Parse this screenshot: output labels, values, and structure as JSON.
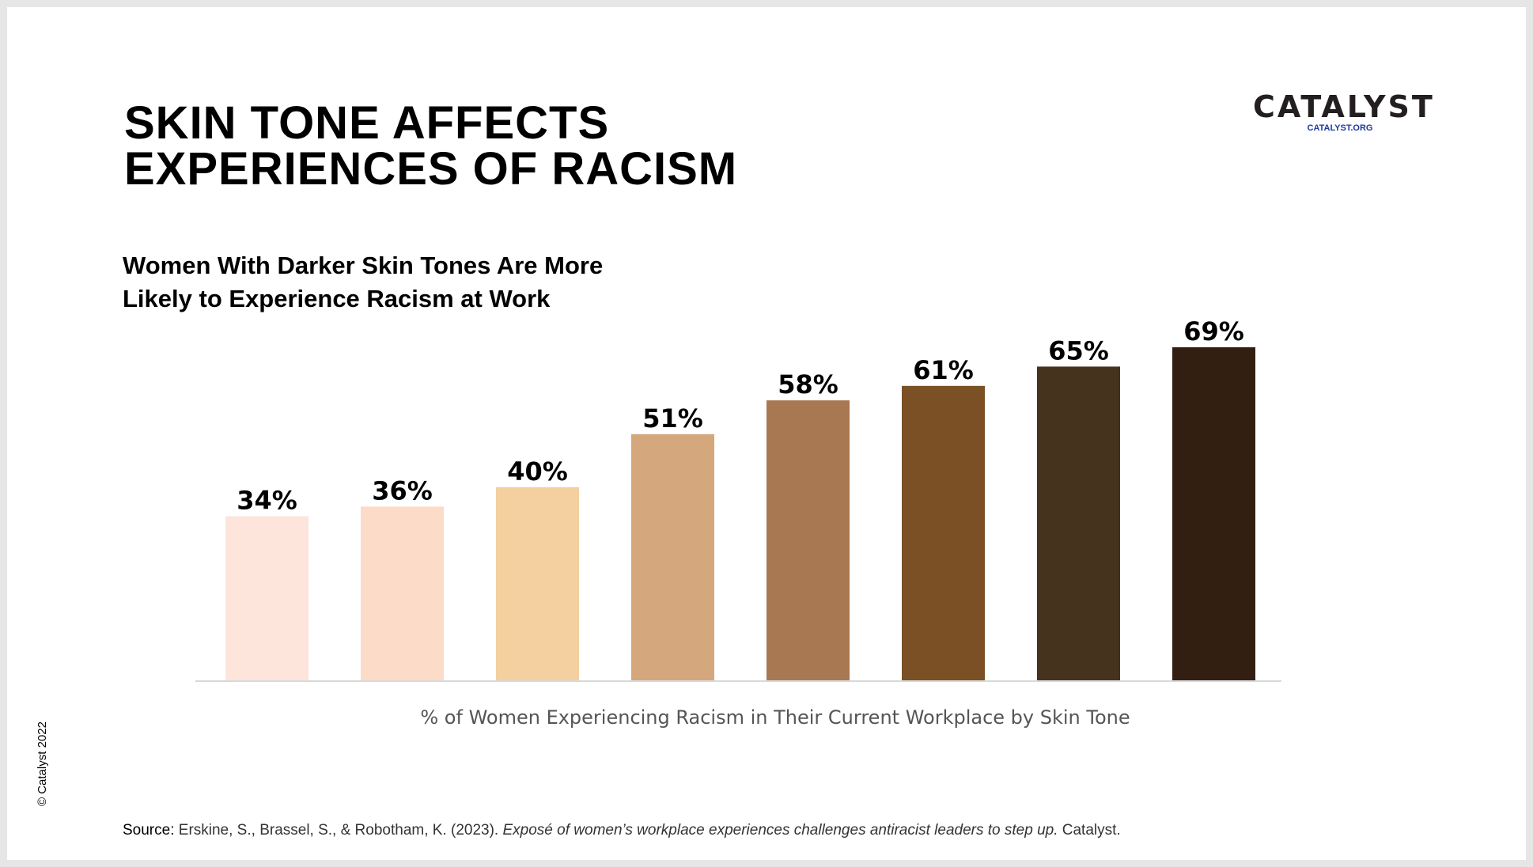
{
  "title_lines": [
    "SKIN TONE AFFECTS",
    "EXPERIENCES OF RACISM"
  ],
  "logo": {
    "name": "CATALYST",
    "url_text": "CATALYST.ORG",
    "url_color": "#1f3a9e"
  },
  "copyright": "© Catalyst 2022",
  "source": {
    "lead": "Source:",
    "authors": "Erskine, S., Brassel, S., & Robotham, K. (2023).",
    "work": "Exposé of women’s workplace experiences challenges antiracist leaders to step up.",
    "publisher": "Catalyst."
  },
  "chart_data": {
    "type": "bar",
    "title": "",
    "subtitle_lines": [
      "Women With Darker Skin Tones Are More",
      "Likely to Experience Racism at Work"
    ],
    "xlabel": "% of Women Experiencing Racism in Their Current Workplace by Skin Tone",
    "ylabel": "",
    "categories": [
      "",
      "",
      "",
      "",
      "",
      "",
      "",
      ""
    ],
    "values": [
      34,
      36,
      40,
      51,
      58,
      61,
      65,
      69
    ],
    "data_labels": [
      "34%",
      "36%",
      "40%",
      "51%",
      "58%",
      "61%",
      "65%",
      "69%"
    ],
    "ylim": [
      0,
      69
    ],
    "grid": false,
    "legend": "none",
    "bar_colors": [
      "#fde5dc",
      "#fcdcc8",
      "#f4cf9f",
      "#d4a77c",
      "#a87852",
      "#7a5024",
      "#45331e",
      "#331f11"
    ],
    "axis_line_color": "#d9d9d9"
  }
}
